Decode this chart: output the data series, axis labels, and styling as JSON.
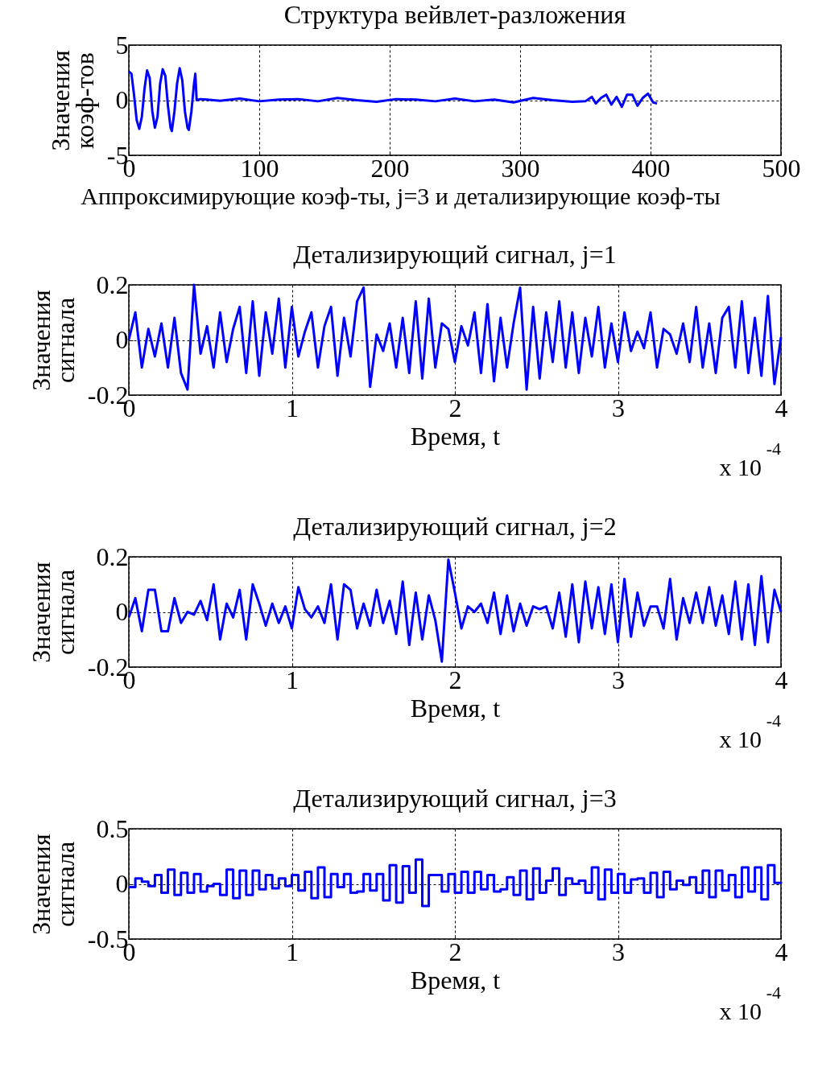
{
  "chart_data": [
    {
      "type": "line",
      "title": "Структура вейвлет-разложения",
      "xlabel": "Аппроксимирующие коэф-ты, j=3 и детализирующие коэф-ты",
      "ylabel": "Значения коэф-тов",
      "xlim": [
        0,
        500
      ],
      "xticks": [
        0,
        100,
        200,
        300,
        400,
        500
      ],
      "ylim": [
        -5,
        5
      ],
      "yticks": [
        -5,
        0,
        5
      ],
      "grid": true,
      "marker": "none",
      "line_style": "solid",
      "series": [
        {
          "color": "#0000ff",
          "x": [
            0,
            2,
            4,
            6,
            8,
            10,
            12,
            14,
            16,
            18,
            20,
            22,
            24,
            26,
            28,
            30,
            32,
            33,
            35,
            37,
            39,
            41,
            43,
            45,
            46,
            48,
            50,
            51,
            52,
            55,
            70,
            85,
            100,
            115,
            130,
            145,
            160,
            175,
            190,
            205,
            220,
            235,
            250,
            265,
            280,
            295,
            310,
            325,
            340,
            350,
            355,
            358,
            362,
            366,
            370,
            374,
            378,
            382,
            386,
            390,
            394,
            398,
            402,
            405
          ],
          "values": [
            2.6,
            2.4,
            0.5,
            -1.8,
            -2.6,
            -1.5,
            1,
            2.7,
            2,
            -1,
            -2.5,
            -1.5,
            1.5,
            2.8,
            2.2,
            -0.5,
            -2.5,
            -2.8,
            -1,
            1.5,
            2.9,
            1.8,
            -1,
            -2.5,
            -2.7,
            -1,
            1.5,
            2.4,
            0,
            0.1,
            -0.05,
            0.15,
            -0.1,
            0.05,
            0.1,
            -0.1,
            0.2,
            0,
            -0.15,
            0.1,
            0.05,
            -0.1,
            0.15,
            -0.1,
            0.05,
            -0.2,
            0.2,
            0,
            -0.15,
            -0.1,
            0.3,
            -0.3,
            0.2,
            0.5,
            -0.4,
            0.3,
            -0.6,
            0.5,
            0.5,
            -0.5,
            0.2,
            0.6,
            -0.2,
            -0.3
          ]
        }
      ]
    },
    {
      "type": "line",
      "title": "Детализирующий сигнал, j=1",
      "xlabel": "Время, t",
      "ylabel": "Значения сигнала",
      "annotations": [
        "x 10$^{-4}$"
      ],
      "xlim": [
        0,
        4
      ],
      "xticks": [
        0,
        1,
        2,
        3,
        4
      ],
      "ylim": [
        -0.2,
        0.2
      ],
      "yticks": [
        -0.2,
        0,
        0.2
      ],
      "grid": true,
      "marker": "none",
      "line_style": "solid",
      "x": [
        0,
        0.04,
        0.08,
        0.12,
        0.16,
        0.2,
        0.24,
        0.28,
        0.32,
        0.36,
        0.4,
        0.44,
        0.48,
        0.52,
        0.56,
        0.6,
        0.64,
        0.68,
        0.72,
        0.76,
        0.8,
        0.84,
        0.88,
        0.92,
        0.96,
        1,
        1.04,
        1.08,
        1.12,
        1.16,
        1.2,
        1.24,
        1.28,
        1.32,
        1.36,
        1.4,
        1.44,
        1.48,
        1.52,
        1.56,
        1.6,
        1.64,
        1.68,
        1.72,
        1.76,
        1.8,
        1.84,
        1.88,
        1.92,
        1.96,
        2,
        2.04,
        2.08,
        2.12,
        2.16,
        2.2,
        2.24,
        2.28,
        2.32,
        2.36,
        2.4,
        2.44,
        2.48,
        2.52,
        2.56,
        2.6,
        2.64,
        2.68,
        2.72,
        2.76,
        2.8,
        2.84,
        2.88,
        2.92,
        2.96,
        3,
        3.04,
        3.08,
        3.12,
        3.16,
        3.2,
        3.24,
        3.28,
        3.32,
        3.36,
        3.4,
        3.44,
        3.48,
        3.52,
        3.56,
        3.6,
        3.64,
        3.68,
        3.72,
        3.76,
        3.8,
        3.84,
        3.88,
        3.92,
        3.96,
        4
      ],
      "series": [
        {
          "color": "#0000ff",
          "values": [
            0,
            0.1,
            -0.1,
            0.04,
            -0.06,
            0.06,
            -0.1,
            0.08,
            -0.12,
            -0.18,
            0.2,
            -0.05,
            0.05,
            -0.1,
            0.1,
            -0.08,
            0.04,
            0.12,
            -0.12,
            0.14,
            -0.13,
            0.1,
            -0.05,
            0.15,
            -0.1,
            0.12,
            -0.06,
            0.03,
            0.1,
            -0.1,
            0.05,
            0.12,
            -0.13,
            0.08,
            -0.06,
            0.14,
            0.19,
            -0.17,
            0.02,
            -0.04,
            0.06,
            -0.1,
            0.08,
            -0.12,
            0.14,
            -0.14,
            0.15,
            -0.1,
            0.06,
            0.04,
            -0.08,
            0.05,
            -0.02,
            0.1,
            -0.12,
            0.13,
            -0.15,
            0.08,
            -0.1,
            0.06,
            0.19,
            -0.18,
            0.12,
            -0.14,
            0.1,
            -0.08,
            0.14,
            -0.1,
            0.1,
            -0.12,
            0.08,
            -0.06,
            0.12,
            -0.1,
            0.06,
            -0.08,
            0.1,
            -0.04,
            0.03,
            -0.03,
            0.1,
            -0.1,
            0.04,
            0.02,
            -0.05,
            0.06,
            -0.08,
            0.12,
            -0.1,
            0.06,
            -0.12,
            0.08,
            0.12,
            -0.1,
            0.14,
            -0.12,
            0.08,
            -0.13,
            0.16,
            -0.16,
            0.01
          ]
        }
      ]
    },
    {
      "type": "line",
      "title": "Детализирующий сигнал, j=2",
      "xlabel": "Время, t",
      "ylabel": "Значения сигнала",
      "annotations": [
        "x 10$^{-4}$"
      ],
      "xlim": [
        0,
        4
      ],
      "xticks": [
        0,
        1,
        2,
        3,
        4
      ],
      "ylim": [
        -0.2,
        0.2
      ],
      "yticks": [
        -0.2,
        0,
        0.2
      ],
      "grid": true,
      "marker": "none",
      "line_style": "solid",
      "x": [
        0,
        0.04,
        0.08,
        0.12,
        0.16,
        0.2,
        0.24,
        0.28,
        0.32,
        0.36,
        0.4,
        0.44,
        0.48,
        0.52,
        0.56,
        0.6,
        0.64,
        0.68,
        0.72,
        0.76,
        0.8,
        0.84,
        0.88,
        0.92,
        0.96,
        1,
        1.04,
        1.08,
        1.12,
        1.16,
        1.2,
        1.24,
        1.28,
        1.32,
        1.36,
        1.4,
        1.44,
        1.48,
        1.52,
        1.56,
        1.6,
        1.64,
        1.68,
        1.72,
        1.76,
        1.8,
        1.84,
        1.88,
        1.92,
        1.96,
        2,
        2.04,
        2.08,
        2.12,
        2.16,
        2.2,
        2.24,
        2.28,
        2.32,
        2.36,
        2.4,
        2.44,
        2.48,
        2.52,
        2.56,
        2.6,
        2.64,
        2.68,
        2.72,
        2.76,
        2.8,
        2.84,
        2.88,
        2.92,
        2.96,
        3,
        3.04,
        3.08,
        3.12,
        3.16,
        3.2,
        3.24,
        3.28,
        3.32,
        3.36,
        3.4,
        3.44,
        3.48,
        3.52,
        3.56,
        3.6,
        3.64,
        3.68,
        3.72,
        3.76,
        3.8,
        3.84,
        3.88,
        3.92,
        3.96,
        4
      ],
      "series": [
        {
          "color": "#0000ff",
          "values": [
            -0.02,
            0.05,
            -0.07,
            0.08,
            0.08,
            -0.07,
            -0.07,
            0.05,
            -0.04,
            0,
            -0.01,
            0.04,
            -0.03,
            0.1,
            -0.1,
            0.03,
            -0.02,
            0.08,
            -0.1,
            0.1,
            0.03,
            -0.05,
            0.03,
            -0.04,
            0.02,
            -0.06,
            0.09,
            0.01,
            -0.02,
            0.02,
            -0.04,
            0.1,
            -0.1,
            0.1,
            0.08,
            -0.06,
            0.03,
            -0.05,
            0.08,
            -0.04,
            0.04,
            -0.08,
            0.11,
            -0.12,
            0.07,
            -0.1,
            0.06,
            -0.03,
            -0.18,
            0.19,
            0.07,
            -0.06,
            0.02,
            0,
            0.03,
            -0.04,
            0.07,
            -0.08,
            0.06,
            -0.07,
            0.03,
            -0.05,
            0.02,
            0.01,
            0.02,
            -0.06,
            0.07,
            -0.09,
            0.1,
            -0.11,
            0.11,
            -0.06,
            0.09,
            -0.08,
            0.1,
            -0.11,
            0.12,
            -0.09,
            0.07,
            -0.05,
            0.02,
            0.02,
            -0.06,
            0.12,
            -0.1,
            0.05,
            -0.04,
            0.07,
            -0.04,
            0.09,
            -0.05,
            0.06,
            -0.08,
            0.11,
            -0.1,
            0.1,
            -0.12,
            0.13,
            -0.11,
            0.08,
            0
          ]
        }
      ]
    },
    {
      "type": "step",
      "title": "Детализирующий сигнал, j=3",
      "xlabel": "Время, t",
      "ylabel": "Значения сигнала",
      "annotations": [
        "x 10$^{-4}$"
      ],
      "xlim": [
        0,
        4
      ],
      "xticks": [
        0,
        1,
        2,
        3,
        4
      ],
      "ylim": [
        -0.5,
        0.5
      ],
      "yticks": [
        -0.5,
        0,
        0.5
      ],
      "grid": true,
      "marker": "none",
      "line_style": "solid",
      "x": [
        0,
        0.04,
        0.08,
        0.12,
        0.16,
        0.2,
        0.24,
        0.28,
        0.32,
        0.36,
        0.4,
        0.44,
        0.48,
        0.52,
        0.56,
        0.6,
        0.64,
        0.68,
        0.72,
        0.76,
        0.8,
        0.84,
        0.88,
        0.92,
        0.96,
        1,
        1.04,
        1.08,
        1.12,
        1.16,
        1.2,
        1.24,
        1.28,
        1.32,
        1.36,
        1.4,
        1.44,
        1.48,
        1.52,
        1.56,
        1.6,
        1.64,
        1.68,
        1.72,
        1.76,
        1.8,
        1.84,
        1.88,
        1.92,
        1.96,
        2,
        2.04,
        2.08,
        2.12,
        2.16,
        2.2,
        2.24,
        2.28,
        2.32,
        2.36,
        2.4,
        2.44,
        2.48,
        2.52,
        2.56,
        2.6,
        2.64,
        2.68,
        2.72,
        2.76,
        2.8,
        2.84,
        2.88,
        2.92,
        2.96,
        3,
        3.04,
        3.08,
        3.12,
        3.16,
        3.2,
        3.24,
        3.28,
        3.32,
        3.36,
        3.4,
        3.44,
        3.48,
        3.52,
        3.56,
        3.6,
        3.64,
        3.68,
        3.72,
        3.76,
        3.8,
        3.84,
        3.88,
        3.92,
        3.96,
        4
      ],
      "series": [
        {
          "color": "#0000ff",
          "values": [
            -0.03,
            0.05,
            0.02,
            -0.02,
            0.08,
            -0.08,
            0.13,
            -0.1,
            0.1,
            -0.08,
            0.09,
            -0.07,
            -0.02,
            0,
            -0.1,
            0.13,
            -0.13,
            0.12,
            -0.1,
            0.12,
            -0.05,
            0.08,
            -0.04,
            0.05,
            -0.02,
            0.08,
            -0.06,
            0.11,
            -0.13,
            0.15,
            -0.12,
            0.09,
            -0.03,
            0.09,
            -0.08,
            -0.07,
            0.09,
            -0.06,
            0.09,
            -0.15,
            0.17,
            -0.17,
            0.16,
            -0.08,
            0.22,
            -0.2,
            0.08,
            0.08,
            -0.07,
            0.09,
            -0.08,
            0.11,
            -0.08,
            0.11,
            -0.05,
            0.08,
            -0.07,
            -0.05,
            0.06,
            -0.1,
            0.12,
            -0.14,
            0.14,
            -0.08,
            0.03,
            0.14,
            -0.1,
            0.05,
            0,
            0.03,
            -0.08,
            0.15,
            -0.14,
            0.13,
            -0.08,
            0.09,
            -0.08,
            0.04,
            0.05,
            -0.08,
            0.1,
            -0.12,
            0.11,
            -0.05,
            0.03,
            -0.01,
            0.06,
            -0.08,
            0.12,
            -0.12,
            0.12,
            -0.06,
            0.08,
            -0.12,
            0.15,
            -0.07,
            0.15,
            -0.14,
            0.17,
            0.01,
            0.02
          ]
        }
      ]
    }
  ]
}
